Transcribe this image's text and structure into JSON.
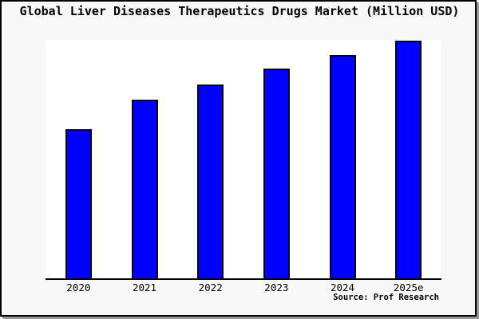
{
  "window": {
    "background": "#f8f8f8",
    "frame_border_color": "#000000",
    "frame_shadow_color": "#999999"
  },
  "chart_data": {
    "type": "bar",
    "title": "Global Liver Diseases Therapeutics Drugs Market (Million USD)",
    "categories": [
      "2020",
      "2021",
      "2022",
      "2023",
      "2024",
      "2025e"
    ],
    "values": [
      62.9,
      75.3,
      81.6,
      88.3,
      94.0,
      100.0
    ],
    "value_note": "Chart displays no y-axis, gridlines, or data labels; values are relative bar heights indexed to 2025e = 100.",
    "xlabel": "",
    "ylabel": "",
    "ylim": [
      0,
      100.3
    ],
    "grid": false,
    "legend_position": "none",
    "bar_fill_color": "#0000ff",
    "bar_edge_color": "#000000",
    "axis_line_color": "#000000",
    "plot_background": "#ffffff",
    "source": "Source: Prof Research"
  }
}
